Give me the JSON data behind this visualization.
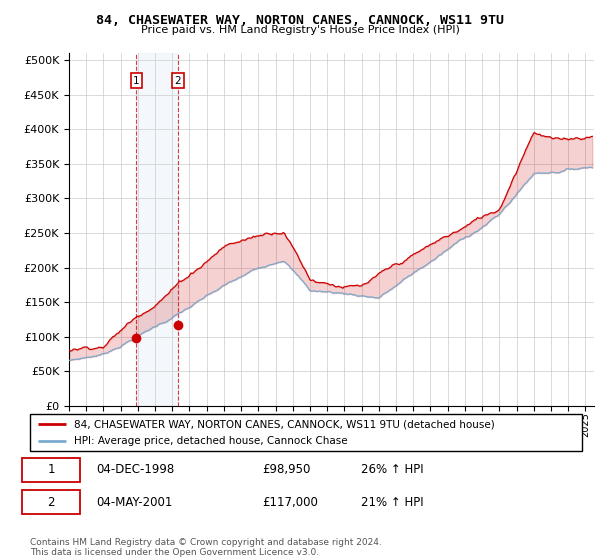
{
  "title": "84, CHASEWATER WAY, NORTON CANES, CANNOCK, WS11 9TU",
  "subtitle": "Price paid vs. HM Land Registry's House Price Index (HPI)",
  "ylabel_vals": [
    0,
    50000,
    100000,
    150000,
    200000,
    250000,
    300000,
    350000,
    400000,
    450000,
    500000
  ],
  "ylim": [
    0,
    510000
  ],
  "xlim_start": 1995.0,
  "xlim_end": 2025.5,
  "house_color": "#cc0000",
  "hpi_color": "#7aaacc",
  "sale1_date": 1998.92,
  "sale1_price": 98950,
  "sale2_date": 2001.33,
  "sale2_price": 117000,
  "legend_line1": "84, CHASEWATER WAY, NORTON CANES, CANNOCK, WS11 9TU (detached house)",
  "legend_line2": "HPI: Average price, detached house, Cannock Chase",
  "table_row1_num": "1",
  "table_row1_date": "04-DEC-1998",
  "table_row1_price": "£98,950",
  "table_row1_hpi": "26% ↑ HPI",
  "table_row2_num": "2",
  "table_row2_date": "04-MAY-2001",
  "table_row2_price": "£117,000",
  "table_row2_hpi": "21% ↑ HPI",
  "footer": "Contains HM Land Registry data © Crown copyright and database right 2024.\nThis data is licensed under the Open Government Licence v3.0.",
  "background_color": "#ffffff",
  "grid_color": "#cccccc"
}
